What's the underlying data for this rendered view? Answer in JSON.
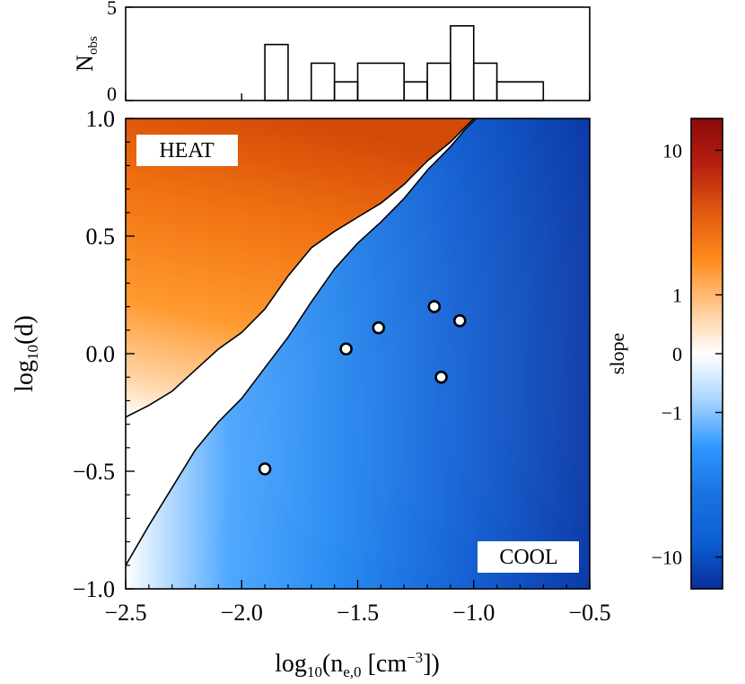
{
  "chart_data": [
    {
      "type": "bar",
      "panel": "histogram",
      "ylabel_main": "N",
      "ylabel_sub": "obs",
      "xlim": [
        -2.5,
        -0.5
      ],
      "ylim": [
        0,
        5
      ],
      "yticks": [
        {
          "v": 0,
          "label": "0"
        },
        {
          "v": 5,
          "label": "5"
        }
      ],
      "bins": [
        {
          "x0": -1.9,
          "x1": -1.8,
          "count": 3
        },
        {
          "x0": -1.7,
          "x1": -1.6,
          "count": 2
        },
        {
          "x0": -1.6,
          "x1": -1.5,
          "count": 1
        },
        {
          "x0": -1.5,
          "x1": -1.3,
          "count": 2
        },
        {
          "x0": -1.3,
          "x1": -1.2,
          "count": 1
        },
        {
          "x0": -1.2,
          "x1": -1.1,
          "count": 2
        },
        {
          "x0": -1.1,
          "x1": -1.0,
          "count": 4
        },
        {
          "x0": -1.0,
          "x1": -0.9,
          "count": 2
        },
        {
          "x0": -0.9,
          "x1": -0.7,
          "count": 1
        }
      ]
    },
    {
      "type": "heatmap",
      "panel": "main",
      "xlabel_prefix": "log",
      "xlabel_sub": "10",
      "xlabel_paren": "(n",
      "xlabel_sub2": "e,0",
      "xlabel_unit": " [cm",
      "xlabel_sup": "−3",
      "xlabel_end": "])",
      "ylabel_prefix": "log",
      "ylabel_sub": "10",
      "ylabel_rest": "(d)",
      "xlim": [
        -2.5,
        -0.5
      ],
      "ylim": [
        -1.0,
        1.0
      ],
      "xticks": [
        {
          "v": -2.5,
          "label": "−2.5"
        },
        {
          "v": -2.0,
          "label": "−2.0"
        },
        {
          "v": -1.5,
          "label": "−1.5"
        },
        {
          "v": -1.0,
          "label": "−1.0"
        },
        {
          "v": -0.5,
          "label": "−0.5"
        }
      ],
      "yticks": [
        {
          "v": -1.0,
          "label": "−1.0"
        },
        {
          "v": -0.5,
          "label": "−0.5"
        },
        {
          "v": 0.0,
          "label": "0.0"
        },
        {
          "v": 0.5,
          "label": "0.5"
        },
        {
          "v": 1.0,
          "label": "1.0"
        }
      ],
      "region_labels": {
        "heat": "HEAT",
        "cool": "COOL"
      },
      "upper_contour": [
        [
          -2.5,
          -0.27
        ],
        [
          -2.4,
          -0.22
        ],
        [
          -2.3,
          -0.16
        ],
        [
          -2.2,
          -0.07
        ],
        [
          -2.1,
          0.02
        ],
        [
          -2.0,
          0.09
        ],
        [
          -1.9,
          0.19
        ],
        [
          -1.8,
          0.33
        ],
        [
          -1.7,
          0.45
        ],
        [
          -1.6,
          0.52
        ],
        [
          -1.5,
          0.58
        ],
        [
          -1.4,
          0.64
        ],
        [
          -1.3,
          0.72
        ],
        [
          -1.2,
          0.82
        ],
        [
          -1.1,
          0.9
        ],
        [
          -1.05,
          0.95
        ],
        [
          -1.0,
          1.0
        ]
      ],
      "lower_contour": [
        [
          -2.5,
          -0.9
        ],
        [
          -2.4,
          -0.73
        ],
        [
          -2.3,
          -0.57
        ],
        [
          -2.2,
          -0.41
        ],
        [
          -2.1,
          -0.29
        ],
        [
          -2.0,
          -0.19
        ],
        [
          -1.9,
          -0.06
        ],
        [
          -1.8,
          0.07
        ],
        [
          -1.7,
          0.22
        ],
        [
          -1.6,
          0.36
        ],
        [
          -1.5,
          0.47
        ],
        [
          -1.4,
          0.56
        ],
        [
          -1.3,
          0.66
        ],
        [
          -1.2,
          0.78
        ],
        [
          -1.1,
          0.88
        ],
        [
          -1.04,
          0.95
        ],
        [
          -0.99,
          1.0
        ]
      ],
      "points": [
        {
          "x": -1.9,
          "y": -0.49
        },
        {
          "x": -1.55,
          "y": 0.02
        },
        {
          "x": -1.41,
          "y": 0.11
        },
        {
          "x": -1.17,
          "y": 0.2
        },
        {
          "x": -1.14,
          "y": -0.1
        },
        {
          "x": -1.06,
          "y": 0.14
        }
      ]
    },
    {
      "type": "colorbar",
      "label": "slope",
      "scale": "symmetric-log",
      "ticks": [
        {
          "v": 10,
          "label": "10"
        },
        {
          "v": 1,
          "label": "1"
        },
        {
          "v": 0,
          "label": "0"
        },
        {
          "v": -1,
          "label": "−1"
        },
        {
          "v": -10,
          "label": "−10"
        }
      ],
      "range": [
        -15,
        15
      ],
      "colors": {
        "max": "#8a0a0a",
        "high": "#d24a10",
        "mid_high": "#ff8a1c",
        "zero": "#ffffff",
        "mid_low": "#2c97ff",
        "low": "#0b5fd3",
        "min": "#0a2f9a"
      }
    }
  ]
}
